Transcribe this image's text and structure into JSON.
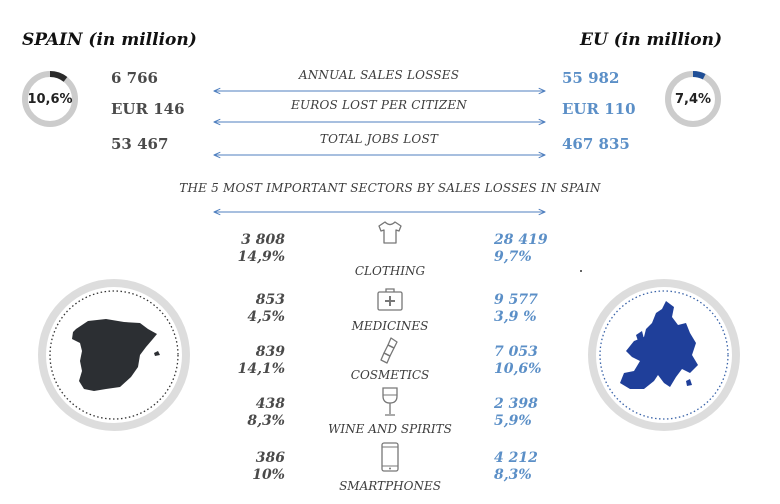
{
  "header": {
    "spain_title": "SPAIN (in million)",
    "eu_title": "EU (in million)"
  },
  "donuts": {
    "spain": {
      "label": "10,6%",
      "fraction": 0.106,
      "color": "#2a2a2a"
    },
    "eu": {
      "label": "7,4%",
      "fraction": 0.074,
      "color": "#1f4e96"
    }
  },
  "colors": {
    "spain_value": "#4a4a4a",
    "eu_value": "#5b8fc7",
    "arrow": "#4f7fbf",
    "ring": "#cccccc"
  },
  "metrics": [
    {
      "label": "ANNUAL SALES LOSSES",
      "spain": "6 766",
      "eu": "55 982"
    },
    {
      "label": "EUROS LOST PER CITIZEN",
      "spain": "EUR 146",
      "eu": "EUR 110"
    },
    {
      "label": "TOTAL JOBS LOST",
      "spain": "53 467",
      "eu": "467 835"
    }
  ],
  "sectors_title": "THE 5 MOST IMPORTANT SECTORS BY SALES LOSSES IN SPAIN",
  "sectors": [
    {
      "name": "CLOTHING",
      "icon": "shirt-icon",
      "spain_value": "3 808",
      "spain_pct": "14,9%",
      "eu_value": "28 419",
      "eu_pct": "9,7%"
    },
    {
      "name": "MEDICINES",
      "icon": "first-aid-kit-icon",
      "spain_value": "853",
      "spain_pct": "4,5%",
      "eu_value": "9 577",
      "eu_pct": "3,9 %"
    },
    {
      "name": "COSMETICS",
      "icon": "lipstick-icon",
      "spain_value": "839",
      "spain_pct": "14,1%",
      "eu_value": "7 053",
      "eu_pct": "10,6%"
    },
    {
      "name": "WINE AND SPIRITS",
      "icon": "wine-glass-icon",
      "spain_value": "438",
      "spain_pct": "8,3%",
      "eu_value": "2 398",
      "eu_pct": "5,9%"
    },
    {
      "name": "SMARTPHONES",
      "icon": "smartphone-icon",
      "spain_value": "386",
      "spain_pct": "10%",
      "eu_value": "4 212",
      "eu_pct": "8,3%"
    }
  ],
  "maps": {
    "spain": "spain-map-icon",
    "eu": "eu-map-icon"
  }
}
